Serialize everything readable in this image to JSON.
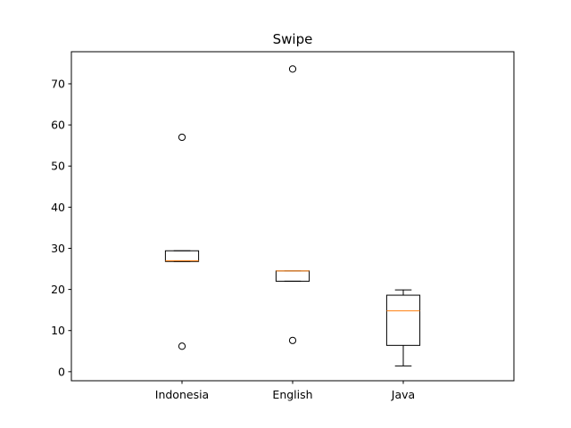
{
  "chart_data": {
    "type": "box",
    "title": "Swipe",
    "xlabel": "",
    "ylabel": "",
    "categories": [
      "Indonesia",
      "English",
      "Java"
    ],
    "ylim": [
      -2.2,
      77.8
    ],
    "yticks": [
      0,
      10,
      20,
      30,
      40,
      50,
      60,
      70
    ],
    "boxes": [
      {
        "category": "Indonesia",
        "whisker_low": 26.8,
        "q1": 26.8,
        "median": 27.0,
        "q3": 29.4,
        "whisker_high": 29.4,
        "outliers": [
          57.0,
          6.2
        ]
      },
      {
        "category": "English",
        "whisker_low": 22.0,
        "q1": 22.0,
        "median": 24.5,
        "q3": 24.5,
        "whisker_high": 24.5,
        "outliers": [
          73.6,
          7.6
        ]
      },
      {
        "category": "Java",
        "whisker_low": 1.4,
        "q1": 6.4,
        "median": 14.8,
        "q3": 18.6,
        "whisker_high": 19.9,
        "outliers": []
      }
    ],
    "grid": false,
    "colors": {
      "box": "#000000",
      "median": "#ff7f0e",
      "outlier": "#000000",
      "background": "#ffffff"
    }
  }
}
